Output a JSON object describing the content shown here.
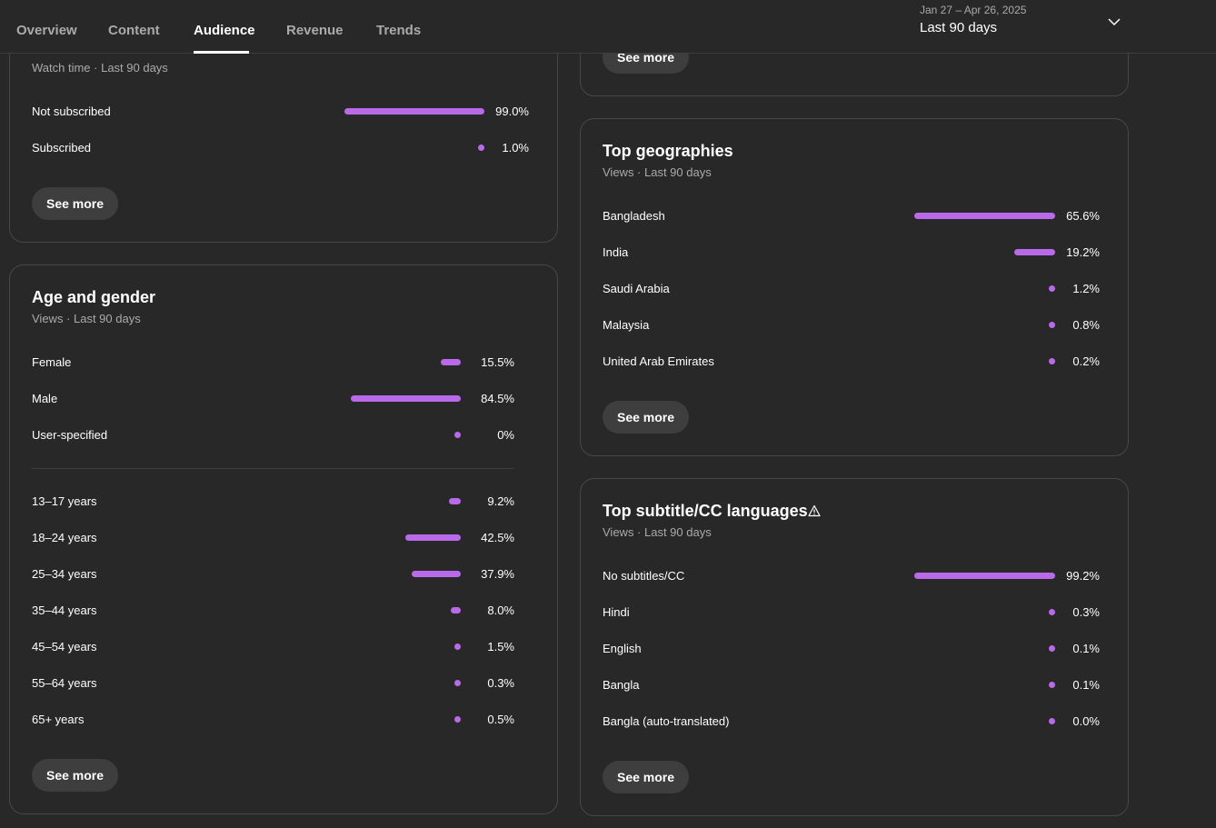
{
  "nav": {
    "tabs": [
      {
        "label": "Overview"
      },
      {
        "label": "Content"
      },
      {
        "label": "Audience"
      },
      {
        "label": "Revenue"
      },
      {
        "label": "Trends"
      }
    ],
    "date_range": "Jan 27 – Apr 26, 2025",
    "date_label": "Last 90 days"
  },
  "subscribed_card": {
    "subtitle": "Watch time · Last 90 days",
    "rows": [
      {
        "label": "Not subscribed",
        "value": "99.0%",
        "fraction": 0.99
      },
      {
        "label": "Subscribed",
        "value": "1.0%",
        "fraction": 0.01
      }
    ],
    "see_more": "See more"
  },
  "age_gender_card": {
    "title": "Age and gender",
    "subtitle": "Views · Last 90 days",
    "gender_rows": [
      {
        "label": "Female",
        "value": "15.5%",
        "fraction": 0.155
      },
      {
        "label": "Male",
        "value": "84.5%",
        "fraction": 0.845
      },
      {
        "label": "User-specified",
        "value": "0%",
        "fraction": 0
      }
    ],
    "age_rows": [
      {
        "label": "13–17 years",
        "value": "9.2%",
        "fraction": 0.092
      },
      {
        "label": "18–24 years",
        "value": "42.5%",
        "fraction": 0.425
      },
      {
        "label": "25–34 years",
        "value": "37.9%",
        "fraction": 0.379
      },
      {
        "label": "35–44 years",
        "value": "8.0%",
        "fraction": 0.08
      },
      {
        "label": "45–54 years",
        "value": "1.5%",
        "fraction": 0.015
      },
      {
        "label": "55–64 years",
        "value": "0.3%",
        "fraction": 0.003
      },
      {
        "label": "65+ years",
        "value": "0.5%",
        "fraction": 0.005
      }
    ],
    "see_more": "See more"
  },
  "top_card": {
    "see_more": "See more"
  },
  "geo_card": {
    "title": "Top geographies",
    "subtitle": "Views · Last 90 days",
    "rows": [
      {
        "label": "Bangladesh",
        "value": "65.6%",
        "fraction": 0.656
      },
      {
        "label": "India",
        "value": "19.2%",
        "fraction": 0.192
      },
      {
        "label": "Saudi Arabia",
        "value": "1.2%",
        "fraction": 0.012
      },
      {
        "label": "Malaysia",
        "value": "0.8%",
        "fraction": 0.008
      },
      {
        "label": "United Arab Emirates",
        "value": "0.2%",
        "fraction": 0.002
      }
    ],
    "see_more": "See more"
  },
  "subtitle_card": {
    "title": "Top subtitle/CC languages",
    "subtitle": "Views · Last 90 days",
    "rows": [
      {
        "label": "No subtitles/CC",
        "value": "99.2%",
        "fraction": 0.992
      },
      {
        "label": "Hindi",
        "value": "0.3%",
        "fraction": 0.003
      },
      {
        "label": "English",
        "value": "0.1%",
        "fraction": 0.001
      },
      {
        "label": "Bangla",
        "value": "0.1%",
        "fraction": 0.001
      },
      {
        "label": "Bangla (auto-translated)",
        "value": "0.0%",
        "fraction": 0
      }
    ],
    "see_more": "See more"
  },
  "colors": {
    "bar": "#b86ae8",
    "background": "#282828",
    "card_border": "#474747",
    "button_bg": "#3e3e3e"
  },
  "icons": {
    "dropdown": "chevron-down-icon",
    "warning": "warning-icon"
  }
}
